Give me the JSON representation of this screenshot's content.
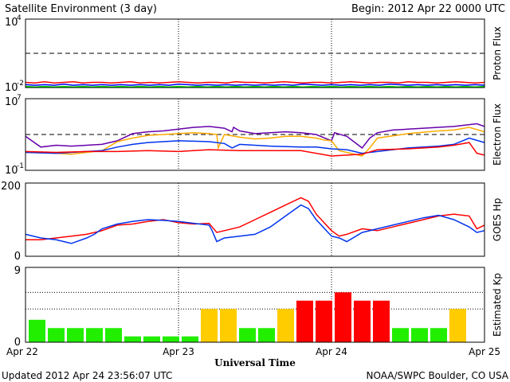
{
  "header": {
    "title": "Satellite Environment (3 day)",
    "begin": "Begin:  2012 Apr 22 0000 UTC"
  },
  "footer": {
    "updated": "Updated 2012 Apr 24 23:56:07 UTC",
    "source": "NOAA/SWPC Boulder, CO USA",
    "xlabel": "Universal Time"
  },
  "chart_data": [
    {
      "type": "line",
      "ylabel": "Proton Flux",
      "scale": "log",
      "ylim_exponent": [
        -2,
        4
      ],
      "tick_labels": [
        "10",
        "4",
        "10",
        "-2"
      ],
      "xlim_days": [
        0,
        3
      ],
      "threshold_exponent": 1,
      "series": [
        {
          "color": "#ff0000",
          "values_exp": [
            -1.55,
            -1.6,
            -1.5,
            -1.6,
            -1.55,
            -1.5,
            -1.6,
            -1.55,
            -1.55,
            -1.6,
            -1.55,
            -1.5,
            -1.6,
            -1.55,
            -1.6,
            -1.55,
            -1.5,
            -1.55,
            -1.6,
            -1.55,
            -1.55,
            -1.6,
            -1.5,
            -1.55,
            -1.55,
            -1.6,
            -1.55,
            -1.5,
            -1.55,
            -1.6,
            -1.55,
            -1.55,
            -1.6,
            -1.55,
            -1.5,
            -1.55,
            -1.6,
            -1.55,
            -1.55,
            -1.6,
            -1.5,
            -1.55,
            -1.55,
            -1.6,
            -1.55,
            -1.5,
            -1.55,
            -1.6,
            -1.55
          ]
        },
        {
          "color": "#0000ff",
          "values_exp": [
            -1.75,
            -1.8,
            -1.75,
            -1.8,
            -1.7,
            -1.8,
            -1.75,
            -1.8,
            -1.75,
            -1.8,
            -1.75,
            -1.8,
            -1.75,
            -1.8,
            -1.75,
            -1.8,
            -1.7,
            -1.75,
            -1.8,
            -1.75,
            -1.8,
            -1.75,
            -1.8,
            -1.75,
            -1.8,
            -1.75,
            -1.8,
            -1.75,
            -1.8,
            -1.7,
            -1.75,
            -1.8,
            -1.75,
            -1.8,
            -1.75,
            -1.8,
            -1.75,
            -1.8,
            -1.7,
            -1.75,
            -1.8,
            -1.75,
            -1.8,
            -1.75,
            -1.8,
            -1.75,
            -1.8,
            -1.75,
            -1.8
          ]
        },
        {
          "color": "#00dd00",
          "values_exp": [
            -1.9,
            -1.95,
            -1.9,
            -1.95,
            -1.9,
            -1.95,
            -1.9,
            -1.95,
            -1.9,
            -1.95,
            -1.9,
            -1.95,
            -1.9,
            -1.95,
            -1.9,
            -1.95,
            -1.9,
            -1.95,
            -1.9,
            -1.95,
            -1.9,
            -1.95,
            -1.9,
            -1.95,
            -1.9,
            -1.95,
            -1.9,
            -1.95,
            -1.9,
            -1.95,
            -1.9,
            -1.95,
            -1.9,
            -1.95,
            -1.9,
            -1.95,
            -1.9,
            -1.95,
            -1.9,
            -1.95,
            -1.9,
            -1.95,
            -1.9,
            -1.95,
            -1.9,
            -1.95,
            -1.9,
            -1.95,
            -1.9
          ]
        }
      ]
    },
    {
      "type": "line",
      "ylabel": "Electron Flux",
      "scale": "log",
      "ylim_exponent": [
        -1,
        7
      ],
      "tick_labels": [
        "10",
        "7",
        "10",
        "-1"
      ],
      "xlim_days": [
        0,
        3
      ],
      "threshold_exponent": 3,
      "series": [
        {
          "color": "#6600aa",
          "x": [
            0,
            0.1,
            0.2,
            0.3,
            0.4,
            0.5,
            0.6,
            0.7,
            0.8,
            0.9,
            1.0,
            1.1,
            1.2,
            1.3,
            1.35,
            1.36,
            1.4,
            1.5,
            1.6,
            1.7,
            1.8,
            1.9,
            2.0,
            2.02,
            2.1,
            2.2,
            2.25,
            2.3,
            2.4,
            2.5,
            2.6,
            2.7,
            2.8,
            2.9,
            2.95,
            3.0
          ],
          "values_exp": [
            2.8,
            1.6,
            1.8,
            1.7,
            1.8,
            1.9,
            2.3,
            3.1,
            3.3,
            3.4,
            3.6,
            3.8,
            3.9,
            3.7,
            3.3,
            3.8,
            3.4,
            3.1,
            3.2,
            3.3,
            3.2,
            3.0,
            2.3,
            3.2,
            2.8,
            1.5,
            2.6,
            3.2,
            3.5,
            3.6,
            3.7,
            3.8,
            3.9,
            4.1,
            4.2,
            3.9
          ]
        },
        {
          "color": "#ffaa00",
          "x": [
            0,
            0.2,
            0.3,
            0.4,
            0.5,
            0.6,
            0.7,
            0.8,
            0.9,
            1.0,
            1.1,
            1.2,
            1.25,
            1.26,
            1.3,
            1.4,
            1.5,
            1.6,
            1.7,
            1.8,
            1.9,
            1.95,
            2.0,
            2.05,
            2.1,
            2.2,
            2.25,
            2.3,
            2.5,
            2.7,
            2.8,
            2.9,
            3.0
          ],
          "values_exp": [
            1.0,
            0.9,
            0.8,
            1.0,
            1.2,
            2.2,
            2.6,
            2.9,
            3.0,
            3.1,
            3.2,
            3.1,
            3.0,
            1.5,
            3.0,
            2.7,
            2.5,
            2.6,
            2.8,
            2.8,
            2.6,
            2.4,
            2.3,
            1.2,
            1.0,
            0.6,
            1.5,
            2.6,
            3.1,
            3.4,
            3.5,
            3.8,
            3.3
          ]
        },
        {
          "color": "#0033ee",
          "x": [
            0,
            0.2,
            0.4,
            0.5,
            0.6,
            0.7,
            0.8,
            1.0,
            1.2,
            1.3,
            1.35,
            1.4,
            1.6,
            1.8,
            1.9,
            2.0,
            2.1,
            2.2,
            2.3,
            2.5,
            2.7,
            2.8,
            2.9,
            3.0
          ],
          "values_exp": [
            1.0,
            0.9,
            1.1,
            1.2,
            1.6,
            1.9,
            2.1,
            2.3,
            2.2,
            2.0,
            1.5,
            1.9,
            1.7,
            1.6,
            1.6,
            1.4,
            1.3,
            0.9,
            1.1,
            1.5,
            1.7,
            1.9,
            2.6,
            2.1
          ]
        },
        {
          "color": "#ff0000",
          "x": [
            0,
            0.2,
            0.4,
            0.6,
            0.8,
            1.0,
            1.2,
            1.4,
            1.6,
            1.8,
            2.0,
            2.2,
            2.3,
            2.5,
            2.7,
            2.8,
            2.9,
            2.95,
            3.0
          ],
          "values_exp": [
            1.1,
            1.0,
            1.1,
            1.1,
            1.2,
            1.1,
            1.3,
            1.2,
            1.2,
            1.2,
            0.6,
            0.8,
            1.3,
            1.4,
            1.6,
            1.8,
            2.1,
            0.9,
            0.7
          ]
        }
      ]
    },
    {
      "type": "line",
      "ylabel": "GOES Hp",
      "ylim": [
        0,
        200
      ],
      "tick_labels": [
        "200",
        "0"
      ],
      "xlim_days": [
        0,
        3
      ],
      "series": [
        {
          "color": "#ff0000",
          "x": [
            0,
            0.1,
            0.2,
            0.3,
            0.4,
            0.5,
            0.6,
            0.7,
            0.8,
            0.9,
            1.0,
            1.1,
            1.2,
            1.22,
            1.25,
            1.3,
            1.4,
            1.5,
            1.6,
            1.7,
            1.8,
            1.85,
            1.9,
            2.0,
            2.05,
            2.1,
            2.2,
            2.3,
            2.4,
            2.5,
            2.6,
            2.7,
            2.8,
            2.9,
            2.95,
            3.0
          ],
          "values": [
            45,
            45,
            50,
            55,
            60,
            70,
            85,
            88,
            95,
            100,
            92,
            88,
            90,
            80,
            65,
            70,
            80,
            100,
            120,
            140,
            160,
            150,
            115,
            70,
            55,
            60,
            75,
            70,
            80,
            90,
            100,
            110,
            115,
            110,
            75,
            85
          ]
        },
        {
          "color": "#0033ee",
          "x": [
            0,
            0.1,
            0.2,
            0.3,
            0.4,
            0.45,
            0.5,
            0.6,
            0.7,
            0.8,
            0.9,
            1.0,
            1.1,
            1.2,
            1.22,
            1.25,
            1.3,
            1.4,
            1.5,
            1.6,
            1.7,
            1.8,
            1.85,
            1.9,
            2.0,
            2.05,
            2.1,
            2.2,
            2.3,
            2.4,
            2.5,
            2.6,
            2.7,
            2.8,
            2.9,
            2.95,
            3.0
          ],
          "values": [
            60,
            50,
            45,
            35,
            50,
            60,
            75,
            88,
            95,
            100,
            98,
            95,
            90,
            85,
            70,
            40,
            50,
            55,
            60,
            80,
            110,
            140,
            130,
            100,
            55,
            50,
            40,
            65,
            75,
            85,
            95,
            105,
            112,
            100,
            80,
            65,
            70
          ]
        }
      ]
    },
    {
      "type": "bar",
      "ylabel": "Estimated Kp",
      "ylim": [
        0,
        9
      ],
      "tick_labels": [
        "9",
        "0"
      ],
      "gridlines": [
        4,
        6
      ],
      "xlim_days": [
        0,
        3
      ],
      "values": [
        2.7,
        1.7,
        1.7,
        1.7,
        1.7,
        0.7,
        0.7,
        0.7,
        0.7,
        4.0,
        4.0,
        1.7,
        1.7,
        4.0,
        5.0,
        5.0,
        6.0,
        5.0,
        5.0,
        1.7,
        1.7,
        1.7,
        4.0
      ],
      "colors": [
        "#22ee00",
        "#22ee00",
        "#22ee00",
        "#22ee00",
        "#22ee00",
        "#22ee00",
        "#22ee00",
        "#22ee00",
        "#22ee00",
        "#ffcc00",
        "#ffcc00",
        "#22ee00",
        "#22ee00",
        "#ffcc00",
        "#ff0000",
        "#ff0000",
        "#ff0000",
        "#ff0000",
        "#ff0000",
        "#22ee00",
        "#22ee00",
        "#22ee00",
        "#ffcc00"
      ],
      "xticks": [
        "Apr 22",
        "Apr 23",
        "Apr 24",
        "Apr 25"
      ]
    }
  ]
}
